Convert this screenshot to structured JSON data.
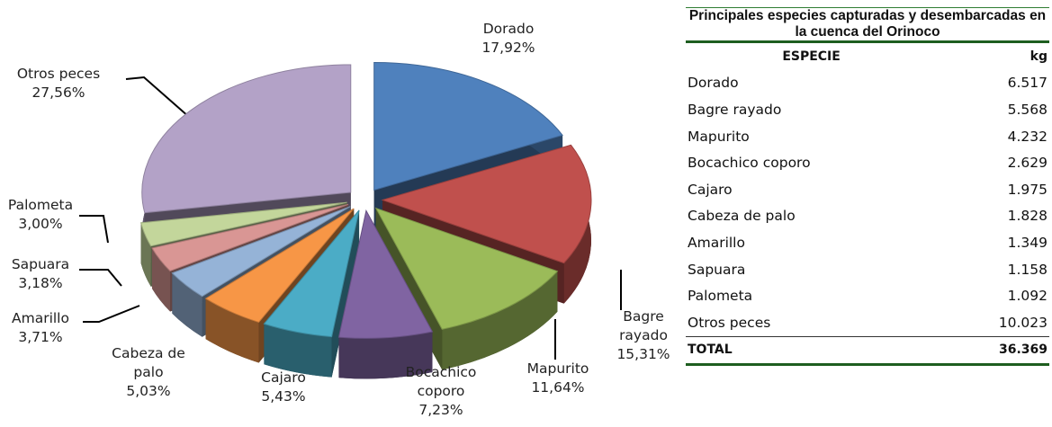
{
  "chart_data": {
    "type": "pie",
    "categories": [
      "Dorado",
      "Bagre rayado",
      "Mapurito",
      "Bocachico coporo",
      "Cajaro",
      "Cabeza de palo",
      "Amarillo",
      "Sapuara",
      "Palometa",
      "Otros peces"
    ],
    "values": [
      17.92,
      15.31,
      11.64,
      7.23,
      5.43,
      5.03,
      3.71,
      3.18,
      3.0,
      27.56
    ],
    "value_labels": [
      "17,92%",
      "15,31%",
      "11,64%",
      "7,23%",
      "5,43%",
      "5,03%",
      "3,71%",
      "3,18%",
      "3,00%",
      "27,56%"
    ],
    "colors": [
      "#4f81bd",
      "#c0504d",
      "#9bbb59",
      "#8064a2",
      "#4bacc6",
      "#f79646",
      "#95b3d7",
      "#d99694",
      "#c3d69b",
      "#b3a2c7"
    ]
  },
  "table": {
    "title": "Principales especies capturadas  y desembarcadas en la cuenca del Orinoco",
    "header": [
      "ESPECIE",
      "kg"
    ],
    "rows": [
      [
        "Dorado",
        "6.517"
      ],
      [
        "Bagre rayado",
        "5.568"
      ],
      [
        "Mapurito",
        "4.232"
      ],
      [
        "Bocachico coporo",
        "2.629"
      ],
      [
        "Cajaro",
        "1.975"
      ],
      [
        "Cabeza de palo",
        "1.828"
      ],
      [
        "Amarillo",
        "1.349"
      ],
      [
        "Sapuara",
        "1.158"
      ],
      [
        "Palometa",
        "1.092"
      ],
      [
        "Otros peces",
        "10.023"
      ]
    ],
    "total": [
      "TOTAL",
      "36.369"
    ]
  }
}
